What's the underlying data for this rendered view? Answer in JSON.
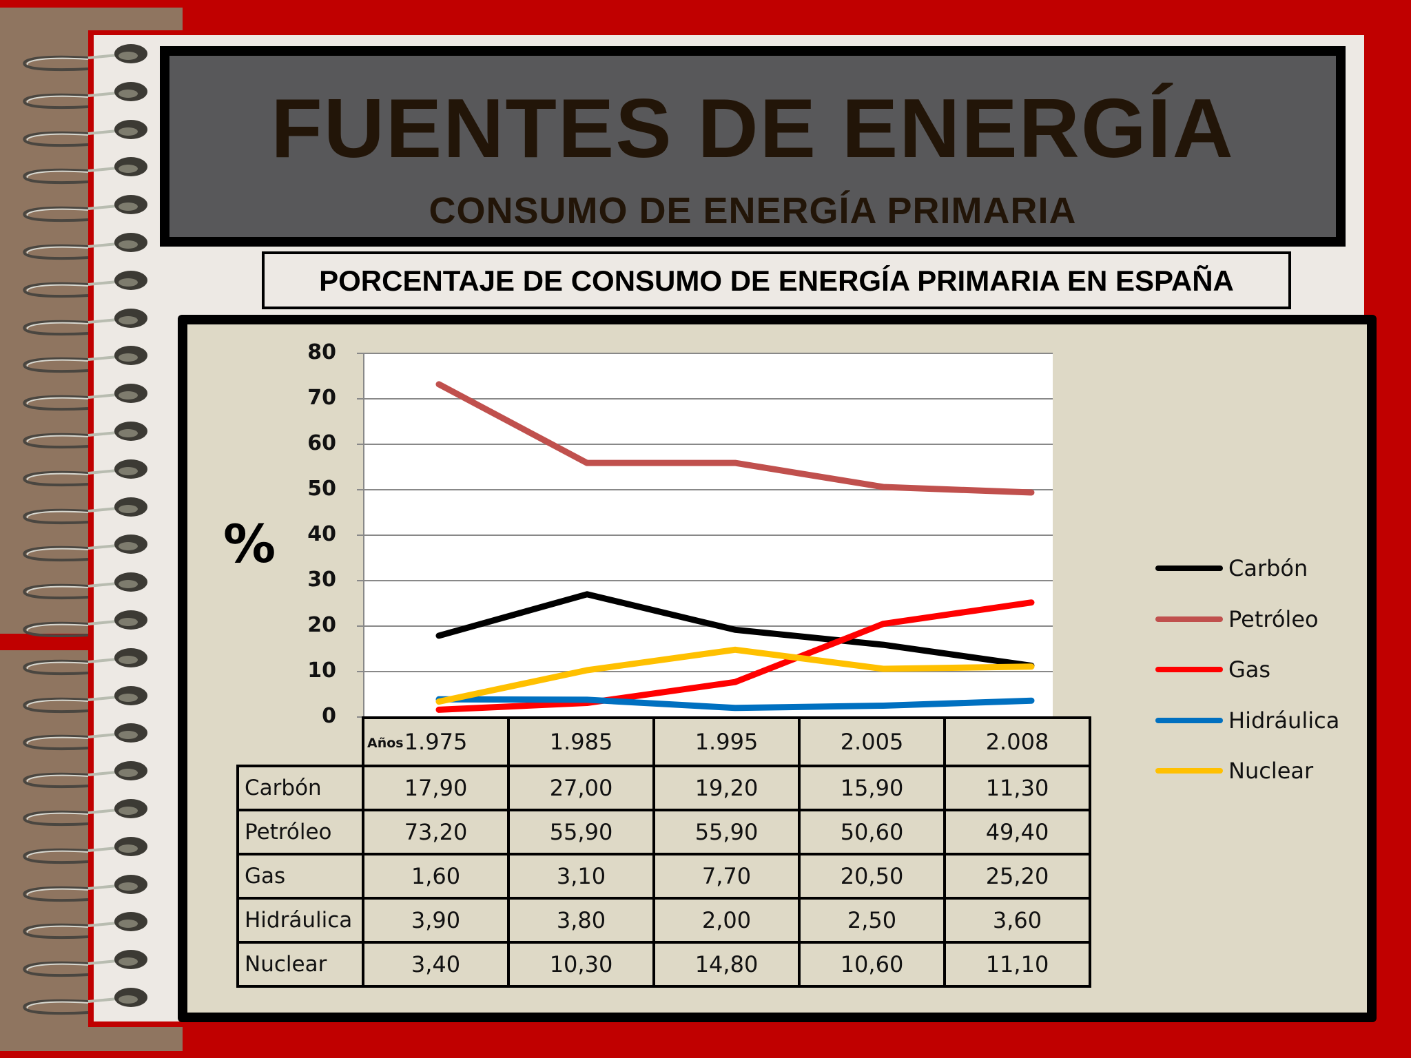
{
  "header": {
    "title": "FUENTES DE ENERGÍA",
    "subtitle": "CONSUMO DE ENERGÍA PRIMARIA"
  },
  "caption": "PORCENTAJE DE CONSUMO DE ENERGÍA PRIMARIA EN ESPAÑA",
  "colors": {
    "background_red": "#c00000",
    "title_panel": "#58585a",
    "title_text": "#221508",
    "chart_panel": "#ded9c6",
    "page": "#ede9e4",
    "brown": "#8f7560"
  },
  "axis": {
    "ylabel": "%",
    "ticks": [
      "80",
      "70",
      "60",
      "50",
      "40",
      "30",
      "20",
      "10",
      "0"
    ]
  },
  "table": {
    "corner_label": "Años",
    "years": [
      "1.975",
      "1.985",
      "1.995",
      "2.005",
      "2.008"
    ],
    "rows": [
      {
        "label": "Carbón",
        "values": [
          "17,90",
          "27,00",
          "19,20",
          "15,90",
          "11,30"
        ]
      },
      {
        "label": "Petróleo",
        "values": [
          "73,20",
          "55,90",
          "55,90",
          "50,60",
          "49,40"
        ]
      },
      {
        "label": "Gas",
        "values": [
          "1,60",
          "3,10",
          "7,70",
          "20,50",
          "25,20"
        ]
      },
      {
        "label": "Hidráulica",
        "values": [
          "3,90",
          "3,80",
          "2,00",
          "2,50",
          "3,60"
        ]
      },
      {
        "label": "Nuclear",
        "values": [
          "3,40",
          "10,30",
          "14,80",
          "10,60",
          "11,10"
        ]
      }
    ]
  },
  "legend": [
    {
      "label": "Carbón",
      "color": "#000000"
    },
    {
      "label": "Petróleo",
      "color": "#c0504d"
    },
    {
      "label": "Gas",
      "color": "#ff0000"
    },
    {
      "label": "Hidráulica",
      "color": "#0070c0"
    },
    {
      "label": "Nuclear",
      "color": "#ffc000"
    }
  ],
  "chart_data": {
    "type": "line",
    "title": "PORCENTAJE DE CONSUMO DE ENERGÍA PRIMARIA EN ESPAÑA",
    "xlabel": "Años",
    "ylabel": "%",
    "ylim": [
      0,
      80
    ],
    "yticks": [
      0,
      10,
      20,
      30,
      40,
      50,
      60,
      70,
      80
    ],
    "grid": true,
    "legend_position": "right",
    "categories": [
      "1.975",
      "1.985",
      "1.995",
      "2.005",
      "2.008"
    ],
    "series": [
      {
        "name": "Carbón",
        "color": "#000000",
        "values": [
          17.9,
          27.0,
          19.2,
          15.9,
          11.3
        ]
      },
      {
        "name": "Petróleo",
        "color": "#c0504d",
        "values": [
          73.2,
          55.9,
          55.9,
          50.6,
          49.4
        ]
      },
      {
        "name": "Gas",
        "color": "#ff0000",
        "values": [
          1.6,
          3.1,
          7.7,
          20.5,
          25.2
        ]
      },
      {
        "name": "Hidráulica",
        "color": "#0070c0",
        "values": [
          3.9,
          3.8,
          2.0,
          2.5,
          3.6
        ]
      },
      {
        "name": "Nuclear",
        "color": "#ffc000",
        "values": [
          3.4,
          10.3,
          14.8,
          10.6,
          11.1
        ]
      }
    ]
  }
}
